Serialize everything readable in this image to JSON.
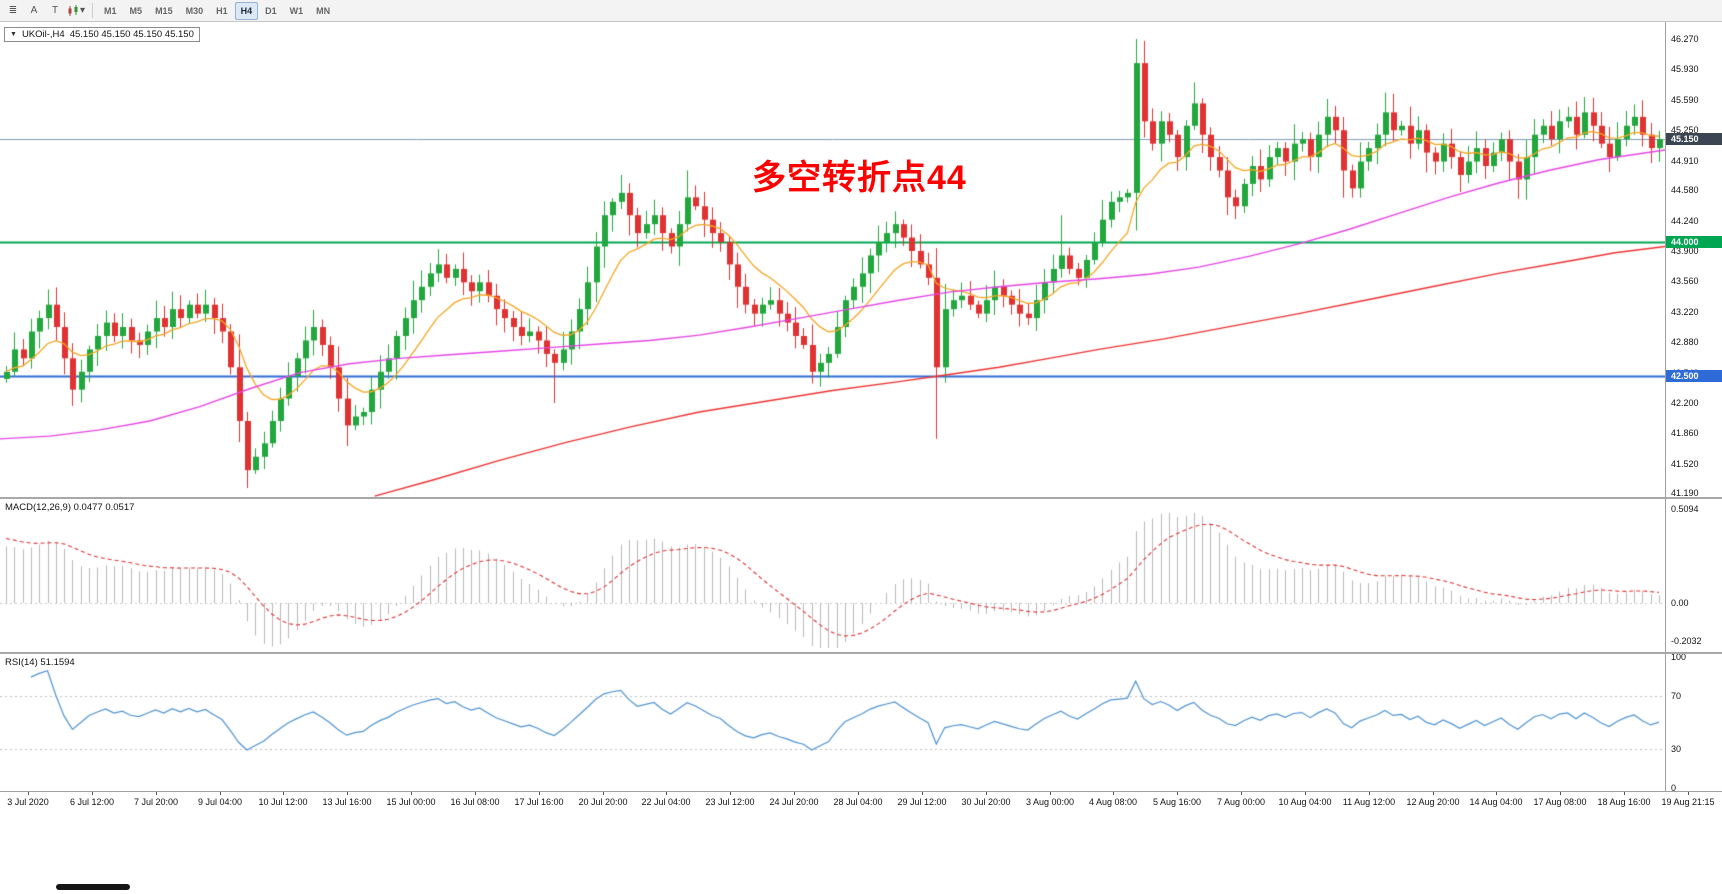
{
  "toolbar": {
    "tools": [
      {
        "name": "indicators",
        "glyph": "≣"
      },
      {
        "name": "arrow-tool",
        "glyph": "A"
      },
      {
        "name": "text-tool",
        "glyph": "T"
      },
      {
        "name": "chart-type-dropdown",
        "glyph": "▾"
      }
    ],
    "timeframes": [
      "M1",
      "M5",
      "M15",
      "M30",
      "H1",
      "H4",
      "D1",
      "W1",
      "MN"
    ],
    "active_timeframe": "H4"
  },
  "header": {
    "collapse_glyph": "▼",
    "symbol": "UKOil-,H4",
    "quotes": "45.150 45.150 45.150 45.150"
  },
  "annotation": {
    "text": "多空转折点44",
    "color": "#ff0000"
  },
  "price_axis": {
    "ticks": [
      "46.270",
      "45.930",
      "45.590",
      "45.250",
      "44.910",
      "44.580",
      "44.240",
      "43.900",
      "43.560",
      "43.220",
      "42.880",
      "42.540",
      "42.200",
      "41.860",
      "41.520",
      "41.190"
    ]
  },
  "hlines": [
    {
      "price": 45.15,
      "label": "45.150",
      "line_color": "#7f9db9",
      "line_width": 1,
      "badge_color": "#3c4653",
      "type": "current-price"
    },
    {
      "price": 44.0,
      "label": "44.000",
      "line_color": "#00a651",
      "line_width": 2,
      "badge_color": "#00a651",
      "type": "support-level"
    },
    {
      "price": 42.5,
      "label": "42.500",
      "line_color": "#2f6bd7",
      "line_width": 2,
      "badge_color": "#2f6bd7",
      "type": "support-level"
    }
  ],
  "macd": {
    "label": "MACD(12,26,9) 0.0477 0.0517",
    "axis": [
      "0.5094",
      "0.00",
      "-0.2032"
    ]
  },
  "rsi": {
    "label": "RSI(14) 51.1594",
    "axis": [
      "100",
      "70",
      "30",
      "0"
    ],
    "levels": [
      70,
      30
    ]
  },
  "time_axis": {
    "labels": [
      "3 Jul 2020",
      "6 Jul 12:00",
      "7 Jul 20:00",
      "9 Jul 04:00",
      "10 Jul 12:00",
      "13 Jul 16:00",
      "15 Jul 00:00",
      "16 Jul 08:00",
      "17 Jul 16:00",
      "20 Jul 20:00",
      "22 Jul 04:00",
      "23 Jul 12:00",
      "24 Jul 20:00",
      "28 Jul 04:00",
      "29 Jul 12:00",
      "30 Jul 20:00",
      "3 Aug 00:00",
      "4 Aug 08:00",
      "5 Aug 16:00",
      "7 Aug 00:00",
      "10 Aug 04:00",
      "11 Aug 12:00",
      "12 Aug 20:00",
      "14 Aug 04:00",
      "17 Aug 08:00",
      "18 Aug 16:00",
      "19 Aug 21:15"
    ]
  },
  "chart_data": {
    "type": "candlestick",
    "symbol": "UKOil-",
    "timeframe": "H4",
    "x_axis": "H4 bars, 3 Jul 2020 - 19 Aug 2020",
    "price_range": [
      41.15,
      46.46
    ],
    "closes": [
      42.55,
      42.8,
      42.7,
      43,
      43.15,
      43.3,
      43.05,
      42.7,
      42.35,
      42.55,
      42.8,
      42.95,
      43.1,
      42.95,
      43.05,
      42.9,
      42.85,
      43,
      43.15,
      43.05,
      43.25,
      43.15,
      43.3,
      43.2,
      43.3,
      43.15,
      43,
      42.6,
      42,
      41.45,
      41.6,
      41.75,
      42,
      42.25,
      42.5,
      42.7,
      42.9,
      43.05,
      42.85,
      42.6,
      42.25,
      41.95,
      42.05,
      42.1,
      42.35,
      42.55,
      42.7,
      42.95,
      43.15,
      43.35,
      43.5,
      43.65,
      43.75,
      43.6,
      43.7,
      43.55,
      43.45,
      43.55,
      43.4,
      43.25,
      43.15,
      43.05,
      42.95,
      43,
      42.9,
      42.75,
      42.65,
      42.8,
      43,
      43.25,
      43.55,
      43.95,
      44.3,
      44.45,
      44.55,
      44.3,
      44.1,
      44.2,
      44.3,
      44.1,
      43.95,
      44.2,
      44.5,
      44.4,
      44.25,
      44.1,
      44,
      43.75,
      43.5,
      43.3,
      43.2,
      43.3,
      43.35,
      43.2,
      43.1,
      42.95,
      42.85,
      42.55,
      42.65,
      42.75,
      43.05,
      43.35,
      43.5,
      43.65,
      43.85,
      44,
      44.1,
      44.2,
      44.05,
      43.9,
      43.75,
      43.6,
      42.6,
      43.25,
      43.35,
      43.4,
      43.3,
      43.2,
      43.35,
      43.5,
      43.4,
      43.3,
      43.2,
      43.15,
      43.35,
      43.55,
      43.7,
      43.85,
      43.7,
      43.6,
      43.8,
      44,
      44.25,
      44.45,
      44.5,
      44.55,
      46,
      45.35,
      45.1,
      45.35,
      45.2,
      44.95,
      45.3,
      45.55,
      45.2,
      44.95,
      44.8,
      44.5,
      44.4,
      44.65,
      44.85,
      44.7,
      44.95,
      45.05,
      44.9,
      45.1,
      45.15,
      44.95,
      45.2,
      45.4,
      45.25,
      44.8,
      44.6,
      44.9,
      45.05,
      45.2,
      45.45,
      45.25,
      45.3,
      45.1,
      45.25,
      45,
      44.9,
      45.1,
      44.95,
      44.75,
      44.9,
      45.05,
      44.85,
      45,
      45.15,
      44.9,
      44.7,
      44.95,
      45.2,
      45.3,
      45.15,
      45.35,
      45.4,
      45.2,
      45.45,
      45.3,
      45.1,
      44.95,
      45.15,
      45.3,
      45.4,
      45.2,
      45.05,
      45.15
    ],
    "wick_overrides": {
      "29": {
        "low": 41.25
      },
      "41": {
        "low": 41.72
      },
      "52": {
        "high": 43.92
      },
      "66": {
        "low": 42.2
      },
      "74": {
        "high": 44.75
      },
      "82": {
        "high": 44.8
      },
      "97": {
        "low": 42.42
      },
      "112": {
        "low": 41.8
      },
      "127": {
        "high": 44.3
      },
      "136": {
        "high": 46.27
      },
      "159": {
        "high": 45.6
      },
      "190": {
        "high": 45.62
      }
    },
    "ma_mid_anchors": [
      [
        0,
        41.8
      ],
      [
        0.03,
        41.83
      ],
      [
        0.06,
        41.9
      ],
      [
        0.09,
        42
      ],
      [
        0.12,
        42.16
      ],
      [
        0.15,
        42.36
      ],
      [
        0.18,
        42.54
      ],
      [
        0.21,
        42.64
      ],
      [
        0.24,
        42.7
      ],
      [
        0.27,
        42.74
      ],
      [
        0.3,
        42.78
      ],
      [
        0.33,
        42.82
      ],
      [
        0.36,
        42.86
      ],
      [
        0.39,
        42.9
      ],
      [
        0.42,
        42.96
      ],
      [
        0.45,
        43.05
      ],
      [
        0.48,
        43.15
      ],
      [
        0.51,
        43.25
      ],
      [
        0.54,
        43.35
      ],
      [
        0.57,
        43.44
      ],
      [
        0.6,
        43.5
      ],
      [
        0.63,
        43.55
      ],
      [
        0.66,
        43.59
      ],
      [
        0.69,
        43.64
      ],
      [
        0.72,
        43.72
      ],
      [
        0.75,
        43.84
      ],
      [
        0.78,
        43.98
      ],
      [
        0.81,
        44.14
      ],
      [
        0.84,
        44.32
      ],
      [
        0.87,
        44.5
      ],
      [
        0.9,
        44.66
      ],
      [
        0.93,
        44.8
      ],
      [
        0.96,
        44.92
      ],
      [
        1,
        45.03
      ]
    ],
    "ma_slow_anchors": [
      [
        0.225,
        41.16
      ],
      [
        0.26,
        41.34
      ],
      [
        0.3,
        41.56
      ],
      [
        0.34,
        41.76
      ],
      [
        0.38,
        41.94
      ],
      [
        0.42,
        42.1
      ],
      [
        0.46,
        42.22
      ],
      [
        0.5,
        42.34
      ],
      [
        0.54,
        42.44
      ],
      [
        0.57,
        42.52
      ],
      [
        0.6,
        42.6
      ],
      [
        0.63,
        42.7
      ],
      [
        0.66,
        42.8
      ],
      [
        0.7,
        42.92
      ],
      [
        0.74,
        43.06
      ],
      [
        0.78,
        43.2
      ],
      [
        0.82,
        43.35
      ],
      [
        0.86,
        43.5
      ],
      [
        0.9,
        43.65
      ],
      [
        0.94,
        43.78
      ],
      [
        0.97,
        43.88
      ],
      [
        1,
        43.95
      ]
    ],
    "colors": {
      "up": "#21a73d",
      "down": "#e03232",
      "ma_fast": "#f5a623",
      "ma_mid": "#e646e6",
      "ma_slow": "#ef3333",
      "macd_hist": "#b9b9b9",
      "macd_signal": "#e03434",
      "rsi": "#4f93d2"
    }
  }
}
